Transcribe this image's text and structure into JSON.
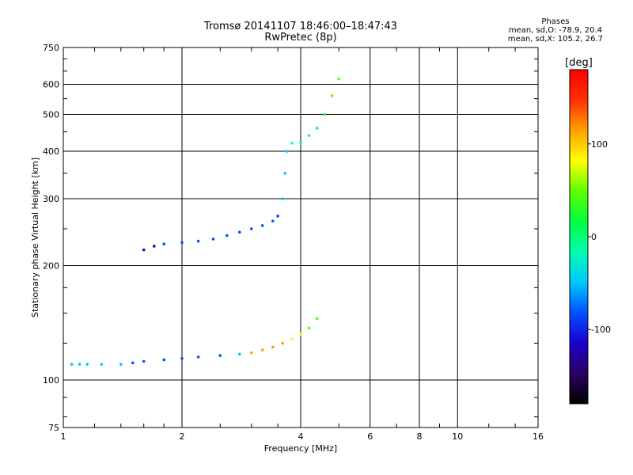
{
  "chart_data": {
    "type": "scatter",
    "title": "Tromsø 20141107 18:46:00–18:47:43",
    "subtitle": "RwPretec (8p)",
    "xlabel": "Frequency [MHz]",
    "ylabel": "Stationary phase Virtual Height [km]",
    "x_scale": "log",
    "y_scale": "log",
    "xlim": [
      1,
      16
    ],
    "ylim": [
      75,
      750
    ],
    "x_ticks": [
      1,
      2,
      4,
      6,
      8,
      10,
      16
    ],
    "x_tick_labels": [
      "1",
      "2",
      "4",
      "6",
      "8",
      "10",
      "16"
    ],
    "y_ticks": [
      75,
      100,
      200,
      300,
      400,
      500,
      600,
      750
    ],
    "y_tick_labels": [
      "75",
      "100",
      "200",
      "300",
      "400",
      "500",
      "600",
      "750"
    ],
    "grid": true,
    "colorbar": {
      "label": "[deg]",
      "range": [
        -180,
        180
      ],
      "ticks": [
        100,
        0,
        -100
      ],
      "tick_labels": [
        "100",
        "0",
        "-100"
      ],
      "colors": [
        "#000000",
        "#2a0060",
        "#1a00d0",
        "#0050ff",
        "#00c8ff",
        "#00ffb0",
        "#00ff40",
        "#60ff00",
        "#ffff00",
        "#ffa000",
        "#ff3000",
        "#ff0000"
      ]
    },
    "stats": {
      "header": "Phases",
      "o_line": "mean, sd,O: -78.9, 20.4",
      "x_line": "mean, sd,X: 105.2, 26.7"
    },
    "series": [
      {
        "comment_role": "low trace",
        "points": [
          [
            1.05,
            110
          ],
          [
            1.1,
            110
          ],
          [
            1.15,
            110
          ],
          [
            1.25,
            110
          ],
          [
            1.4,
            110
          ],
          [
            1.5,
            111
          ],
          [
            1.6,
            112
          ],
          [
            1.8,
            113
          ],
          [
            2.0,
            114
          ],
          [
            2.2,
            115
          ],
          [
            2.5,
            116
          ],
          [
            2.8,
            117
          ],
          [
            3.0,
            118
          ],
          [
            3.2,
            120
          ],
          [
            3.4,
            122
          ],
          [
            3.6,
            125
          ],
          [
            3.8,
            128
          ],
          [
            4.0,
            132
          ],
          [
            4.2,
            137
          ],
          [
            4.4,
            145
          ]
        ],
        "phase": [
          -40,
          -40,
          -45,
          -50,
          -60,
          -70,
          -80,
          -85,
          -90,
          -90,
          -80,
          -60,
          130,
          120,
          110,
          100,
          90,
          80,
          60,
          40
        ]
      },
      {
        "comment_role": "upper trace",
        "points": [
          [
            1.6,
            220
          ],
          [
            1.7,
            225
          ],
          [
            1.8,
            228
          ],
          [
            2.0,
            230
          ],
          [
            2.2,
            232
          ],
          [
            2.4,
            235
          ],
          [
            2.6,
            240
          ],
          [
            2.8,
            245
          ],
          [
            3.0,
            250
          ],
          [
            3.2,
            255
          ],
          [
            3.4,
            262
          ],
          [
            3.5,
            270
          ],
          [
            3.6,
            300
          ],
          [
            3.65,
            350
          ],
          [
            3.7,
            400
          ],
          [
            3.8,
            420
          ],
          [
            4.0,
            420
          ],
          [
            4.2,
            440
          ],
          [
            4.4,
            460
          ],
          [
            4.6,
            500
          ],
          [
            4.8,
            560
          ],
          [
            5.0,
            620
          ]
        ],
        "phase": [
          -100,
          -100,
          -95,
          -95,
          -90,
          -90,
          -85,
          -85,
          -80,
          -80,
          -75,
          -70,
          -60,
          -50,
          -40,
          -30,
          -30,
          -20,
          0,
          20,
          40,
          60
        ]
      }
    ]
  }
}
